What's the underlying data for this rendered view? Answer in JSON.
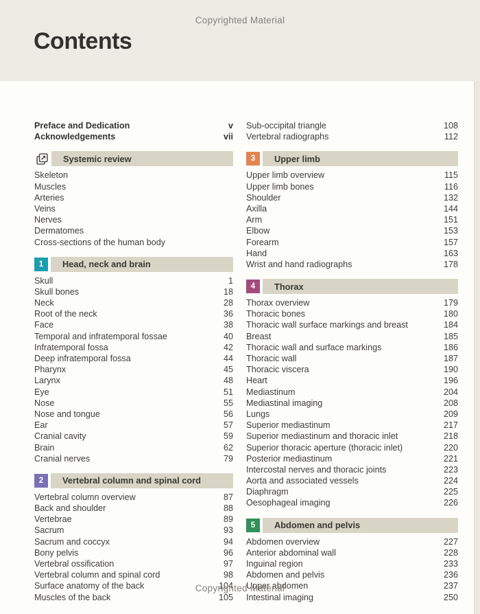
{
  "page": {
    "title": "Contents",
    "copyright_top": "Copyrighted Material",
    "copyright_bottom": "Copyrighted Material"
  },
  "colors": {
    "header_band": "#edebe4",
    "section_bar": "#d8d5c7",
    "section_1_accent": "#1b9dae",
    "section_2_accent": "#7b70b4",
    "section_3_accent": "#e08450",
    "section_4_accent": "#a34a7d",
    "section_5_accent": "#31905c",
    "icon_outline": "#4b4a45"
  },
  "icons": {
    "systemic_review_icon": "pages-arrow-icon"
  },
  "toc": {
    "columns": [
      {
        "side": "left",
        "lead_rows": [
          {
            "label": "Preface and Dedication",
            "page": "v",
            "bold": true
          },
          {
            "label": "Acknowledgements",
            "page": "vii",
            "bold": true
          }
        ],
        "sections": [
          {
            "number": null,
            "icon": "pages-arrow-icon",
            "title": "Systemic review",
            "accent": null,
            "items": [
              {
                "label": "Skeleton",
                "page": ""
              },
              {
                "label": "Muscles",
                "page": ""
              },
              {
                "label": "Arteries",
                "page": ""
              },
              {
                "label": "Veins",
                "page": ""
              },
              {
                "label": "Nerves",
                "page": ""
              },
              {
                "label": "Dermatomes",
                "page": ""
              },
              {
                "label": "Cross-sections of the human body",
                "page": ""
              }
            ]
          },
          {
            "number": "1",
            "icon": null,
            "title": "Head, neck and brain",
            "accent": "#1b9dae",
            "items": [
              {
                "label": "Skull",
                "page": "1"
              },
              {
                "label": "Skull bones",
                "page": "18"
              },
              {
                "label": "Neck",
                "page": "28"
              },
              {
                "label": "Root of the neck",
                "page": "36"
              },
              {
                "label": "Face",
                "page": "38"
              },
              {
                "label": "Temporal and infratemporal fossae",
                "page": "40"
              },
              {
                "label": "Infratemporal fossa",
                "page": "42"
              },
              {
                "label": "Deep infratemporal fossa",
                "page": "44"
              },
              {
                "label": "Pharynx",
                "page": "45"
              },
              {
                "label": "Larynx",
                "page": "48"
              },
              {
                "label": "Eye",
                "page": "51"
              },
              {
                "label": "Nose",
                "page": "55"
              },
              {
                "label": "Nose and tongue",
                "page": "56"
              },
              {
                "label": "Ear",
                "page": "57"
              },
              {
                "label": "Cranial cavity",
                "page": "59"
              },
              {
                "label": "Brain",
                "page": "62"
              },
              {
                "label": "Cranial nerves",
                "page": "79"
              }
            ]
          },
          {
            "number": "2",
            "icon": null,
            "title": "Vertebral column and spinal cord",
            "accent": "#7b70b4",
            "items": [
              {
                "label": "Vertebral column overview",
                "page": "87"
              },
              {
                "label": "Back and shoulder",
                "page": "88"
              },
              {
                "label": "Vertebrae",
                "page": "89"
              },
              {
                "label": "Sacrum",
                "page": "93"
              },
              {
                "label": "Sacrum and coccyx",
                "page": "94"
              },
              {
                "label": "Bony pelvis",
                "page": "96"
              },
              {
                "label": "Vertebral ossification",
                "page": "97"
              },
              {
                "label": "Vertebral column and spinal cord",
                "page": "98"
              },
              {
                "label": "Surface anatomy of the back",
                "page": "104"
              },
              {
                "label": "Muscles of the back",
                "page": "105"
              }
            ]
          }
        ]
      },
      {
        "side": "right",
        "lead_rows": [
          {
            "label": "Sub-occipital triangle",
            "page": "108",
            "bold": false
          },
          {
            "label": "Vertebral radiographs",
            "page": "112",
            "bold": false
          }
        ],
        "sections": [
          {
            "number": "3",
            "icon": null,
            "title": "Upper limb",
            "accent": "#e08450",
            "items": [
              {
                "label": "Upper limb overview",
                "page": "115"
              },
              {
                "label": "Upper limb bones",
                "page": "116"
              },
              {
                "label": "Shoulder",
                "page": "132"
              },
              {
                "label": "Axilla",
                "page": "144"
              },
              {
                "label": "Arm",
                "page": "151"
              },
              {
                "label": "Elbow",
                "page": "153"
              },
              {
                "label": "Forearm",
                "page": "157"
              },
              {
                "label": "Hand",
                "page": "163"
              },
              {
                "label": "Wrist and hand radiographs",
                "page": "178"
              }
            ]
          },
          {
            "number": "4",
            "icon": null,
            "title": "Thorax",
            "accent": "#a34a7d",
            "items": [
              {
                "label": "Thorax overview",
                "page": "179"
              },
              {
                "label": "Thoracic bones",
                "page": "180"
              },
              {
                "label": "Thoracic wall surface markings and breast",
                "page": "184"
              },
              {
                "label": "Breast",
                "page": "185"
              },
              {
                "label": "Thoracic wall and surface markings",
                "page": "186"
              },
              {
                "label": "Thoracic wall",
                "page": "187"
              },
              {
                "label": "Thoracic viscera",
                "page": "190"
              },
              {
                "label": "Heart",
                "page": "196"
              },
              {
                "label": "Mediastinum",
                "page": "204"
              },
              {
                "label": "Mediastinal imaging",
                "page": "208"
              },
              {
                "label": "Lungs",
                "page": "209"
              },
              {
                "label": "Superior mediastinum",
                "page": "217"
              },
              {
                "label": "Superior mediastinum and thoracic inlet",
                "page": "218"
              },
              {
                "label": "Superior thoracic aperture (thoracic inlet)",
                "page": "220"
              },
              {
                "label": "Posterior mediastinum",
                "page": "221"
              },
              {
                "label": "Intercostal nerves and thoracic joints",
                "page": "223"
              },
              {
                "label": "Aorta and associated vessels",
                "page": "224"
              },
              {
                "label": "Diaphragm",
                "page": "225"
              },
              {
                "label": "Oesophageal imaging",
                "page": "226"
              }
            ]
          },
          {
            "number": "5",
            "icon": null,
            "title": "Abdomen and pelvis",
            "accent": "#31905c",
            "items": [
              {
                "label": "Abdomen overview",
                "page": "227"
              },
              {
                "label": "Anterior abdominal wall",
                "page": "228"
              },
              {
                "label": "Inguinal region",
                "page": "233"
              },
              {
                "label": "Abdomen and pelvis",
                "page": "236"
              },
              {
                "label": "Upper abdomen",
                "page": "237"
              },
              {
                "label": "Intestinal imaging",
                "page": "250"
              }
            ]
          }
        ]
      }
    ]
  }
}
